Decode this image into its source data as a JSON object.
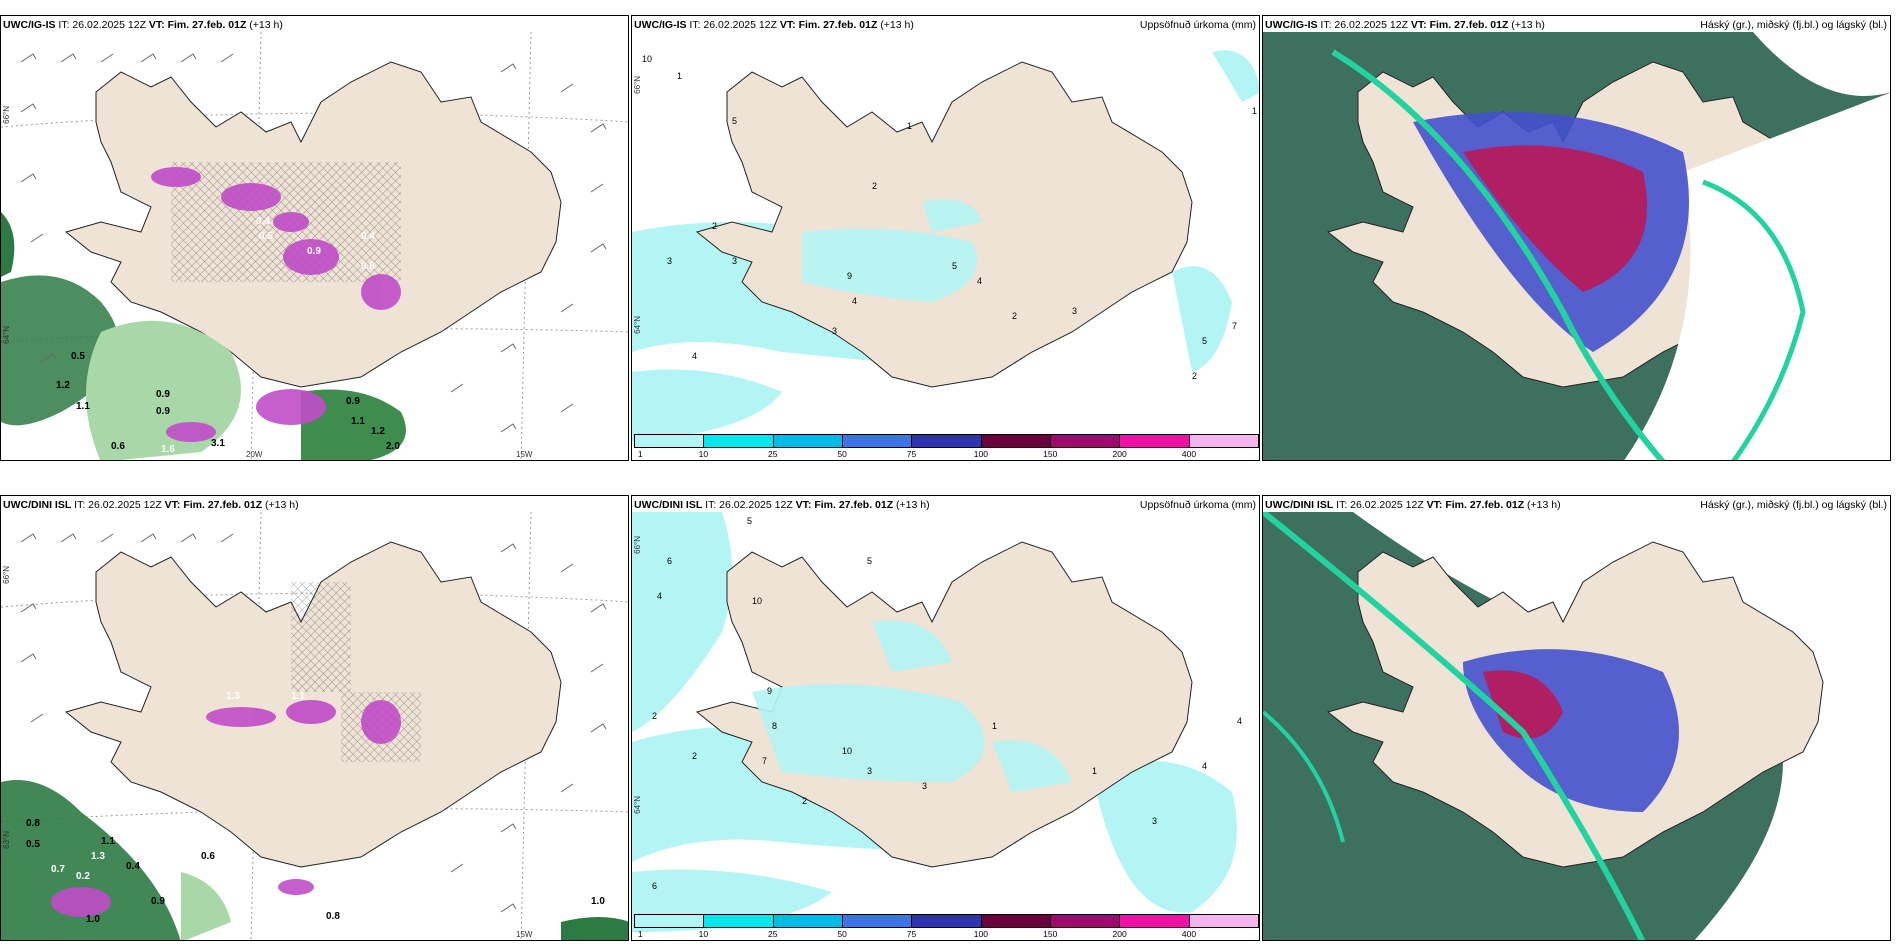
{
  "rows": [
    {
      "model": "UWC/IG-IS",
      "panels": {
        "wind": {
          "model": "UWC/IG-IS",
          "init": "IT: 26.02.2025 12Z",
          "vt_label": "VT:",
          "vt": "Fim. 27.feb. 01Z",
          "step": "(+13 h)"
        },
        "precip": {
          "model": "UWC/IG-IS",
          "init": "IT: 26.02.2025 12Z",
          "vt_label": "VT:",
          "vt": "Fim. 27.feb. 01Z",
          "step": "(+13 h)",
          "right": "Uppsöfnuð úrkoma (mm)"
        },
        "cloud": {
          "model": "UWC/IG-IS",
          "init": "IT: 26.02.2025 12Z",
          "vt_label": "VT:",
          "vt": "Fim. 27.feb. 01Z",
          "step": "(+13 h)",
          "right": "Háský (gr.), miðský (fj.bl.) og lágský (bl.)"
        }
      },
      "wind_labels": [
        "0.5",
        "0.9",
        "1.2",
        "0.9",
        "1.1",
        "1.1",
        "0.6",
        "3.1",
        "1.6",
        "0.9",
        "2.0",
        "1.2",
        "0.4",
        "0.5",
        "0.9",
        "0.6",
        "0.6",
        "0.4"
      ],
      "precip_labels": [
        "10",
        "1",
        "3",
        "4",
        "5",
        "2",
        "1",
        "3",
        "5",
        "2",
        "1",
        "4",
        "3",
        "2",
        "9",
        "4",
        "3",
        "7",
        "5",
        "2"
      ]
    },
    {
      "model": "UWC/DINI ISL",
      "panels": {
        "wind": {
          "model": "UWC/DINI ISL",
          "init": "IT: 26.02.2025 12Z",
          "vt_label": "VT:",
          "vt": "Fim. 27.feb. 01Z",
          "step": "(+13 h)"
        },
        "precip": {
          "model": "UWC/DINI ISL",
          "init": "IT: 26.02.2025 12Z",
          "vt_label": "VT:",
          "vt": "Fim. 27.feb. 01Z",
          "step": "(+13 h)",
          "right": "Uppsöfnuð úrkoma (mm)"
        },
        "cloud": {
          "model": "UWC/DINI ISL",
          "init": "IT: 26.02.2025 12Z",
          "vt_label": "VT:",
          "vt": "Fim. 27.feb. 01Z",
          "step": "(+13 h)",
          "right": "Háský (gr.), miðský (fj.bl.) og lágský (bl.)"
        }
      },
      "wind_labels": [
        "0.8",
        "0.5",
        "1.1",
        "0.7",
        "1.3",
        "0.2",
        "0.4",
        "1.0",
        "0.8",
        "1.3",
        "0.6",
        "1.1",
        "0.9",
        "1.0"
      ],
      "precip_labels": [
        "5",
        "6",
        "4",
        "2",
        "10",
        "9",
        "8",
        "6",
        "3",
        "1",
        "2",
        "4",
        "5",
        "10",
        "7",
        "3",
        "4",
        "2",
        "1",
        "3"
      ]
    }
  ],
  "axis_labels": {
    "lat_66": "66°N",
    "lat_64": "64°N",
    "lat_63": "63°N",
    "lon_20": "20W",
    "lon_15": "15W"
  },
  "colorbar": {
    "ticks": [
      "1",
      "10",
      "25",
      "50",
      "75",
      "100",
      "150",
      "200",
      "400"
    ],
    "colors": [
      "#b3f5f5",
      "#00e8f0",
      "#00bde8",
      "#3b74e6",
      "#2e33b0",
      "#6b003f",
      "#a00a6e",
      "#f00fa8",
      "#f5b5ef"
    ]
  },
  "colors": {
    "land": "#efe3d6",
    "precip_light": "#b3f5f5",
    "wind_green_dark": "#1c5a2c",
    "wind_green_light": "#a8d8a8",
    "purple": "#c04cc8",
    "cloud_sea": "#3e7060",
    "high_cloud": "#c0144e",
    "mid_cloud": "#4450cc",
    "low_cloud_edge": "#22d3a0"
  }
}
